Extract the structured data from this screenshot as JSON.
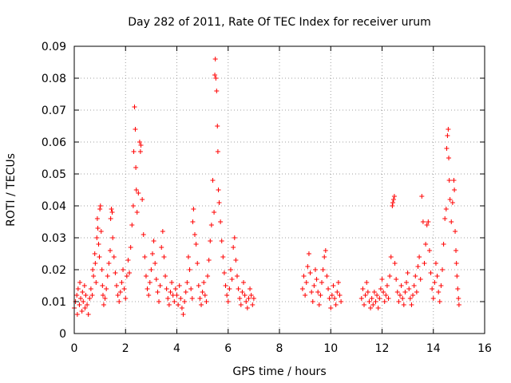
{
  "chart_data": {
    "type": "scatter",
    "title": "Day 282 of 2011, Rate Of TEC Index for receiver urum",
    "xlabel": "GPS time / hours",
    "ylabel": "ROTI / TECUs",
    "xlim": [
      0,
      16
    ],
    "ylim": [
      0,
      0.09
    ],
    "xticks": [
      0,
      2,
      4,
      6,
      8,
      10,
      12,
      14,
      16
    ],
    "yticks": [
      0,
      0.01,
      0.02,
      0.03,
      0.04,
      0.05,
      0.06,
      0.07,
      0.08,
      0.09
    ],
    "xtick_labels": [
      "0",
      "2",
      "4",
      "6",
      "8",
      "10",
      "12",
      "14",
      "16"
    ],
    "ytick_labels": [
      "0",
      "0.01",
      "0.02",
      "0.03",
      "0.04",
      "0.05",
      "0.06",
      "0.07",
      "0.08",
      "0.09"
    ],
    "grid": true,
    "marker": "+",
    "series": [
      {
        "name": "ROTI",
        "color": "#ff0000",
        "points": [
          [
            0.0,
            0.008
          ],
          [
            0.05,
            0.01
          ],
          [
            0.1,
            0.012
          ],
          [
            0.12,
            0.006
          ],
          [
            0.15,
            0.014
          ],
          [
            0.2,
            0.009
          ],
          [
            0.22,
            0.016
          ],
          [
            0.25,
            0.011
          ],
          [
            0.3,
            0.007
          ],
          [
            0.32,
            0.013
          ],
          [
            0.35,
            0.01
          ],
          [
            0.4,
            0.015
          ],
          [
            0.42,
            0.008
          ],
          [
            0.45,
            0.012
          ],
          [
            0.5,
            0.009
          ],
          [
            0.55,
            0.006
          ],
          [
            0.6,
            0.011
          ],
          [
            0.65,
            0.014
          ],
          [
            0.7,
            0.012
          ],
          [
            0.72,
            0.02
          ],
          [
            0.75,
            0.018
          ],
          [
            0.8,
            0.025
          ],
          [
            0.82,
            0.022
          ],
          [
            0.85,
            0.016
          ],
          [
            0.88,
            0.03
          ],
          [
            0.9,
            0.036
          ],
          [
            0.92,
            0.033
          ],
          [
            0.95,
            0.028
          ],
          [
            0.98,
            0.024
          ],
          [
            1.0,
            0.039
          ],
          [
            1.02,
            0.04
          ],
          [
            1.05,
            0.032
          ],
          [
            1.08,
            0.02
          ],
          [
            1.1,
            0.015
          ],
          [
            1.12,
            0.012
          ],
          [
            1.15,
            0.009
          ],
          [
            1.2,
            0.011
          ],
          [
            1.25,
            0.014
          ],
          [
            1.3,
            0.018
          ],
          [
            1.35,
            0.022
          ],
          [
            1.4,
            0.026
          ],
          [
            1.42,
            0.036
          ],
          [
            1.45,
            0.039
          ],
          [
            1.48,
            0.038
          ],
          [
            1.5,
            0.03
          ],
          [
            1.55,
            0.024
          ],
          [
            1.6,
            0.019
          ],
          [
            1.65,
            0.015
          ],
          [
            1.7,
            0.012
          ],
          [
            1.75,
            0.01
          ],
          [
            1.8,
            0.013
          ],
          [
            1.85,
            0.016
          ],
          [
            1.9,
            0.02
          ],
          [
            1.95,
            0.014
          ],
          [
            2.0,
            0.011
          ],
          [
            2.05,
            0.018
          ],
          [
            2.1,
            0.023
          ],
          [
            2.15,
            0.019
          ],
          [
            2.2,
            0.027
          ],
          [
            2.25,
            0.034
          ],
          [
            2.3,
            0.04
          ],
          [
            2.32,
            0.057
          ],
          [
            2.35,
            0.071
          ],
          [
            2.38,
            0.064
          ],
          [
            2.4,
            0.052
          ],
          [
            2.42,
            0.045
          ],
          [
            2.45,
            0.038
          ],
          [
            2.5,
            0.044
          ],
          [
            2.55,
            0.06
          ],
          [
            2.58,
            0.057
          ],
          [
            2.6,
            0.059
          ],
          [
            2.65,
            0.042
          ],
          [
            2.7,
            0.031
          ],
          [
            2.75,
            0.024
          ],
          [
            2.8,
            0.018
          ],
          [
            2.85,
            0.014
          ],
          [
            2.9,
            0.012
          ],
          [
            2.95,
            0.016
          ],
          [
            3.0,
            0.02
          ],
          [
            3.05,
            0.025
          ],
          [
            3.1,
            0.029
          ],
          [
            3.15,
            0.022
          ],
          [
            3.2,
            0.017
          ],
          [
            3.25,
            0.013
          ],
          [
            3.3,
            0.01
          ],
          [
            3.35,
            0.015
          ],
          [
            3.4,
            0.027
          ],
          [
            3.45,
            0.032
          ],
          [
            3.5,
            0.024
          ],
          [
            3.55,
            0.018
          ],
          [
            3.6,
            0.014
          ],
          [
            3.65,
            0.011
          ],
          [
            3.7,
            0.009
          ],
          [
            3.75,
            0.013
          ],
          [
            3.8,
            0.016
          ],
          [
            3.85,
            0.012
          ],
          [
            3.9,
            0.01
          ],
          [
            3.95,
            0.014
          ],
          [
            4.0,
            0.012
          ],
          [
            4.05,
            0.009
          ],
          [
            4.1,
            0.015
          ],
          [
            4.15,
            0.011
          ],
          [
            4.2,
            0.008
          ],
          [
            4.25,
            0.006
          ],
          [
            4.3,
            0.01
          ],
          [
            4.35,
            0.013
          ],
          [
            4.4,
            0.016
          ],
          [
            4.45,
            0.024
          ],
          [
            4.5,
            0.02
          ],
          [
            4.55,
            0.014
          ],
          [
            4.6,
            0.011
          ],
          [
            4.62,
            0.035
          ],
          [
            4.65,
            0.039
          ],
          [
            4.7,
            0.031
          ],
          [
            4.75,
            0.028
          ],
          [
            4.8,
            0.022
          ],
          [
            4.85,
            0.015
          ],
          [
            4.9,
            0.011
          ],
          [
            4.95,
            0.009
          ],
          [
            5.0,
            0.013
          ],
          [
            5.05,
            0.016
          ],
          [
            5.1,
            0.012
          ],
          [
            5.15,
            0.01
          ],
          [
            5.2,
            0.018
          ],
          [
            5.25,
            0.023
          ],
          [
            5.3,
            0.029
          ],
          [
            5.35,
            0.034
          ],
          [
            5.4,
            0.048
          ],
          [
            5.45,
            0.038
          ],
          [
            5.48,
            0.081
          ],
          [
            5.5,
            0.086
          ],
          [
            5.52,
            0.08
          ],
          [
            5.55,
            0.076
          ],
          [
            5.58,
            0.065
          ],
          [
            5.6,
            0.057
          ],
          [
            5.62,
            0.045
          ],
          [
            5.65,
            0.041
          ],
          [
            5.7,
            0.035
          ],
          [
            5.75,
            0.029
          ],
          [
            5.8,
            0.024
          ],
          [
            5.85,
            0.019
          ],
          [
            5.9,
            0.015
          ],
          [
            5.95,
            0.012
          ],
          [
            6.0,
            0.01
          ],
          [
            6.05,
            0.014
          ],
          [
            6.1,
            0.02
          ],
          [
            6.15,
            0.017
          ],
          [
            6.2,
            0.027
          ],
          [
            6.25,
            0.03
          ],
          [
            6.3,
            0.023
          ],
          [
            6.35,
            0.018
          ],
          [
            6.4,
            0.014
          ],
          [
            6.45,
            0.011
          ],
          [
            6.5,
            0.009
          ],
          [
            6.55,
            0.013
          ],
          [
            6.6,
            0.016
          ],
          [
            6.65,
            0.012
          ],
          [
            6.7,
            0.01
          ],
          [
            6.75,
            0.008
          ],
          [
            6.8,
            0.011
          ],
          [
            6.85,
            0.014
          ],
          [
            6.9,
            0.012
          ],
          [
            6.95,
            0.009
          ],
          [
            7.0,
            0.011
          ],
          [
            8.9,
            0.014
          ],
          [
            8.95,
            0.018
          ],
          [
            9.0,
            0.012
          ],
          [
            9.05,
            0.016
          ],
          [
            9.1,
            0.021
          ],
          [
            9.15,
            0.025
          ],
          [
            9.2,
            0.019
          ],
          [
            9.25,
            0.013
          ],
          [
            9.3,
            0.01
          ],
          [
            9.35,
            0.015
          ],
          [
            9.4,
            0.02
          ],
          [
            9.45,
            0.017
          ],
          [
            9.5,
            0.013
          ],
          [
            9.55,
            0.009
          ],
          [
            9.6,
            0.012
          ],
          [
            9.65,
            0.016
          ],
          [
            9.7,
            0.02
          ],
          [
            9.75,
            0.024
          ],
          [
            9.8,
            0.026
          ],
          [
            9.85,
            0.018
          ],
          [
            9.9,
            0.014
          ],
          [
            9.95,
            0.011
          ],
          [
            10.0,
            0.008
          ],
          [
            10.05,
            0.012
          ],
          [
            10.1,
            0.015
          ],
          [
            10.15,
            0.011
          ],
          [
            10.2,
            0.009
          ],
          [
            10.25,
            0.013
          ],
          [
            10.3,
            0.016
          ],
          [
            10.35,
            0.012
          ],
          [
            10.4,
            0.01
          ],
          [
            11.2,
            0.011
          ],
          [
            11.25,
            0.014
          ],
          [
            11.3,
            0.009
          ],
          [
            11.35,
            0.012
          ],
          [
            11.4,
            0.016
          ],
          [
            11.45,
            0.013
          ],
          [
            11.5,
            0.01
          ],
          [
            11.55,
            0.008
          ],
          [
            11.6,
            0.011
          ],
          [
            11.65,
            0.009
          ],
          [
            11.7,
            0.013
          ],
          [
            11.75,
            0.01
          ],
          [
            11.8,
            0.012
          ],
          [
            11.85,
            0.008
          ],
          [
            11.9,
            0.011
          ],
          [
            11.95,
            0.014
          ],
          [
            12.0,
            0.017
          ],
          [
            12.05,
            0.013
          ],
          [
            12.1,
            0.01
          ],
          [
            12.15,
            0.012
          ],
          [
            12.2,
            0.015
          ],
          [
            12.25,
            0.011
          ],
          [
            12.3,
            0.018
          ],
          [
            12.35,
            0.024
          ],
          [
            12.4,
            0.04
          ],
          [
            12.42,
            0.041
          ],
          [
            12.45,
            0.042
          ],
          [
            12.48,
            0.043
          ],
          [
            12.5,
            0.022
          ],
          [
            12.55,
            0.017
          ],
          [
            12.6,
            0.013
          ],
          [
            12.65,
            0.01
          ],
          [
            12.7,
            0.012
          ],
          [
            12.75,
            0.015
          ],
          [
            12.8,
            0.011
          ],
          [
            12.85,
            0.009
          ],
          [
            12.9,
            0.013
          ],
          [
            12.95,
            0.016
          ],
          [
            13.0,
            0.019
          ],
          [
            13.05,
            0.014
          ],
          [
            13.1,
            0.011
          ],
          [
            13.15,
            0.009
          ],
          [
            13.2,
            0.012
          ],
          [
            13.25,
            0.015
          ],
          [
            13.3,
            0.018
          ],
          [
            13.35,
            0.013
          ],
          [
            13.4,
            0.021
          ],
          [
            13.45,
            0.024
          ],
          [
            13.5,
            0.017
          ],
          [
            13.55,
            0.043
          ],
          [
            13.6,
            0.035
          ],
          [
            13.65,
            0.022
          ],
          [
            13.7,
            0.028
          ],
          [
            13.75,
            0.034
          ],
          [
            13.8,
            0.035
          ],
          [
            13.85,
            0.026
          ],
          [
            13.9,
            0.019
          ],
          [
            13.95,
            0.014
          ],
          [
            14.0,
            0.011
          ],
          [
            14.05,
            0.016
          ],
          [
            14.1,
            0.022
          ],
          [
            14.15,
            0.018
          ],
          [
            14.2,
            0.013
          ],
          [
            14.25,
            0.01
          ],
          [
            14.3,
            0.015
          ],
          [
            14.35,
            0.02
          ],
          [
            14.4,
            0.028
          ],
          [
            14.45,
            0.036
          ],
          [
            14.5,
            0.039
          ],
          [
            14.52,
            0.058
          ],
          [
            14.55,
            0.062
          ],
          [
            14.58,
            0.064
          ],
          [
            14.6,
            0.055
          ],
          [
            14.62,
            0.048
          ],
          [
            14.65,
            0.042
          ],
          [
            14.7,
            0.035
          ],
          [
            14.75,
            0.041
          ],
          [
            14.8,
            0.048
          ],
          [
            14.82,
            0.045
          ],
          [
            14.85,
            0.032
          ],
          [
            14.88,
            0.026
          ],
          [
            14.9,
            0.022
          ],
          [
            14.92,
            0.018
          ],
          [
            14.95,
            0.014
          ],
          [
            14.98,
            0.011
          ],
          [
            15.0,
            0.009
          ]
        ]
      }
    ]
  }
}
